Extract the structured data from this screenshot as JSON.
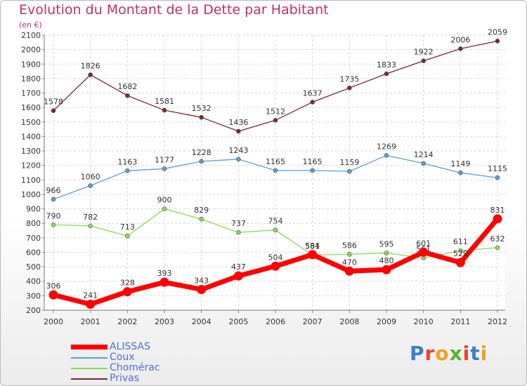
{
  "title": "Evolution du Montant de la Dette par Habitant",
  "unit_label": "(en €)",
  "logo_text": "Proxiti",
  "chart_data": {
    "type": "line",
    "title": "Evolution du Montant de la Dette par Habitant",
    "subtitle": "(en €)",
    "x": [
      "2000",
      "2001",
      "2002",
      "2003",
      "2004",
      "2005",
      "2006",
      "2007",
      "2008",
      "2009",
      "2010",
      "2011",
      "2012"
    ],
    "ylim": [
      200,
      2100
    ],
    "yticks": [
      "200",
      "300",
      "400",
      "500",
      "600",
      "700",
      "800",
      "900",
      "1000",
      "1100",
      "1200",
      "1300",
      "1400",
      "1500",
      "1600",
      "1700",
      "1800",
      "1900",
      "2000",
      "2100"
    ],
    "grid": true,
    "legend_position": "bottom-left",
    "series": [
      {
        "name": "ALISSAS",
        "color": "#ff0000",
        "values": [
          306,
          241,
          328,
          393,
          343,
          437,
          504,
          584,
          470,
          480,
          601,
          529,
          831
        ],
        "labels": [
          "306",
          "241",
          "328",
          "393",
          "343",
          "437",
          "504",
          "584",
          "470",
          "480",
          "601",
          "529",
          "831"
        ]
      },
      {
        "name": "Coux",
        "color": "#5a9fd4",
        "values": [
          966,
          1060,
          1163,
          1177,
          1228,
          1243,
          1165,
          1165,
          1159,
          1269,
          1214,
          1149,
          1115
        ],
        "labels": [
          "966",
          "1060",
          "1163",
          "1177",
          "1228",
          "1243",
          "1165",
          "1165",
          "1159",
          "1269",
          "1214",
          "1149",
          "1115"
        ]
      },
      {
        "name": "Chomérac",
        "color": "#8fd658",
        "values": [
          790,
          782,
          713,
          900,
          829,
          737,
          754,
          581,
          586,
          595,
          561,
          611,
          632
        ],
        "labels": [
          "790",
          "782",
          "713",
          "900",
          "829",
          "737",
          "754",
          "581",
          "586",
          "595",
          "561",
          "611",
          "632"
        ]
      },
      {
        "name": "Privas",
        "color": "#7a2a2a",
        "values": [
          1578,
          1826,
          1682,
          1581,
          1532,
          1436,
          1512,
          1637,
          1735,
          1833,
          1922,
          2006,
          2059
        ],
        "labels": [
          "1578",
          "1826",
          "1682",
          "1581",
          "1532",
          "1436",
          "1512",
          "1637",
          "1735",
          "1833",
          "1922",
          "2006",
          "2059"
        ]
      }
    ]
  }
}
